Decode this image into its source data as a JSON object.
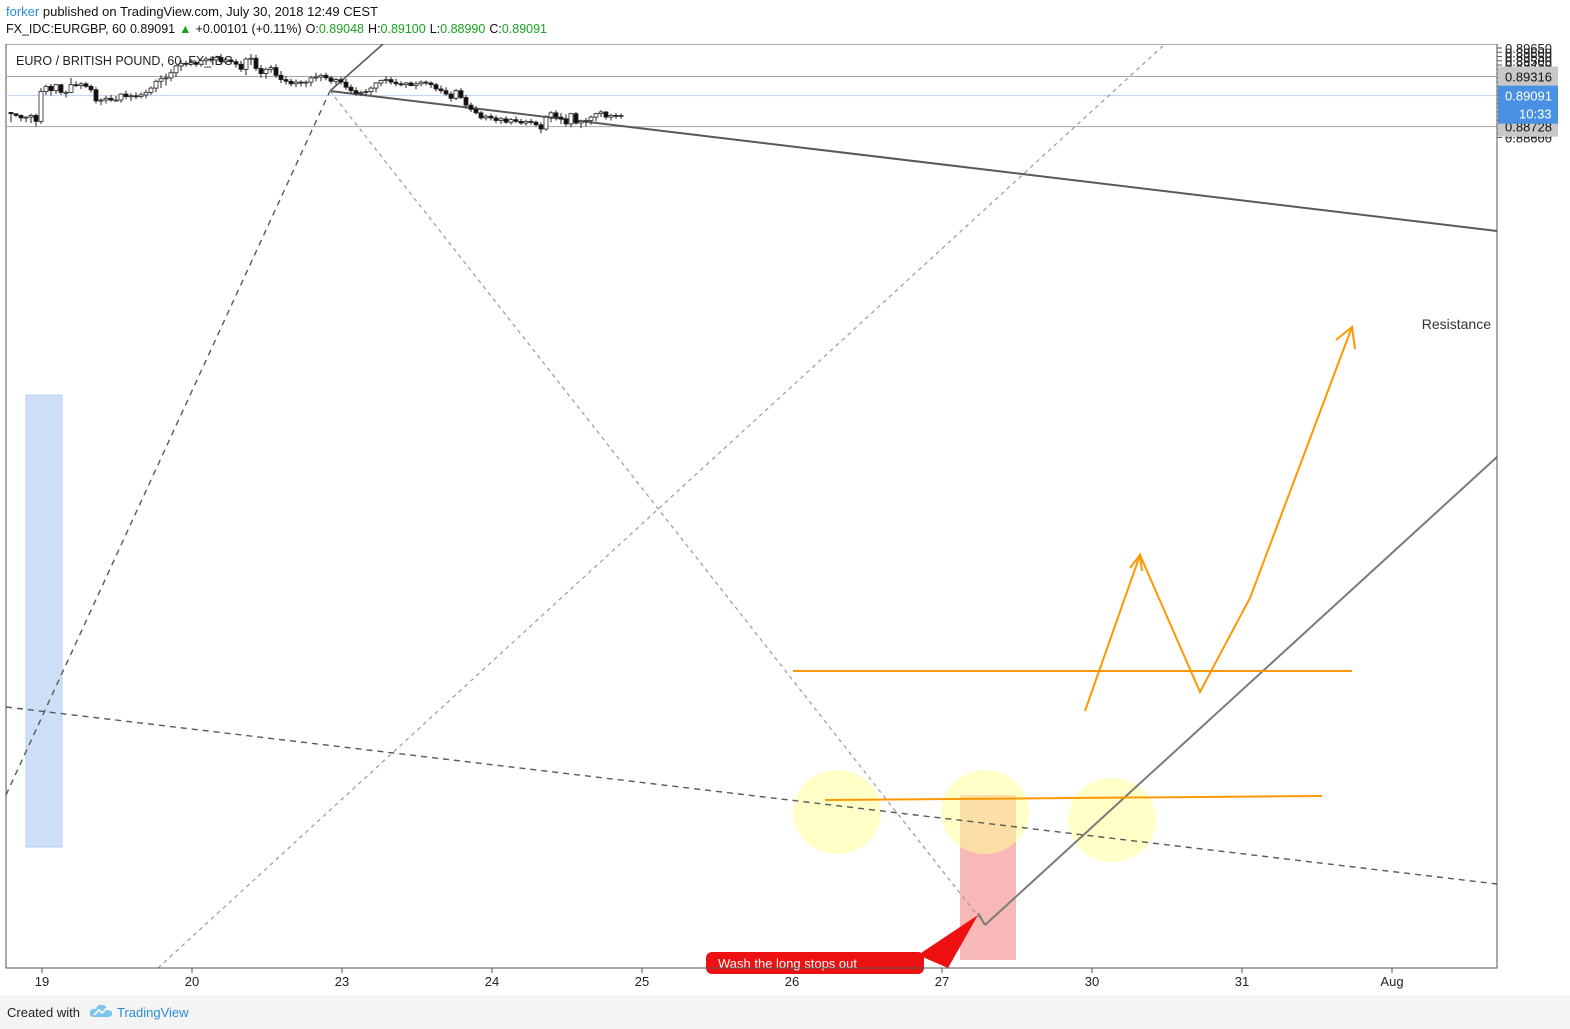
{
  "header": {
    "author": "forker",
    "published_text": "published on TradingView.com, July 30, 2018 12:49 CEST",
    "symbol": "FX_IDC:EURGBP, 60",
    "last": "0.89091",
    "change": "+0.00101 (+0.11%)",
    "open_label": "O:",
    "open": "0.89048",
    "high_label": "H:",
    "high": "0.89100",
    "low_label": "L:",
    "low": "0.88990",
    "close_label": "C:",
    "close": "0.89091"
  },
  "footer": {
    "created_with": "Created with",
    "brand": "TradingView"
  },
  "colors": {
    "up_candle": "#ffffff",
    "down_candle": "#1a0a0a",
    "trend_line": "#595959",
    "projection": "#ff9800",
    "last_price": "#4a90e2",
    "highlight_blue": "#bcd5f5",
    "highlight_red": "#f7a0a0",
    "highlight_yellow": "#ffff99",
    "callout": "#ee1111"
  },
  "chart_data": {
    "type": "candlestick",
    "title": "EURO / BRITISH POUND, 60, FX_IDC",
    "ylim": [
      0.8655,
      0.8966
    ],
    "x_ticks": [
      {
        "i": 7,
        "label": "19"
      },
      {
        "i": 37,
        "label": "20"
      },
      {
        "i": 67,
        "label": "23"
      },
      {
        "i": 97,
        "label": "24"
      },
      {
        "i": 127,
        "label": "25"
      },
      {
        "i": 157,
        "label": "26"
      },
      {
        "i": 187,
        "label": "27"
      },
      {
        "i": 217,
        "label": "30"
      },
      {
        "i": 247,
        "label": "31"
      },
      {
        "i": 277,
        "label": "Aug"
      }
    ],
    "y_ticks": [
      "0.89650",
      "0.89600",
      "0.89550",
      "0.89500",
      "0.89450",
      "0.89400",
      "0.89350",
      "0.89300",
      "0.89250",
      "0.89200",
      "0.89150",
      "0.89100",
      "0.89050",
      "0.89000",
      "0.88950",
      "0.88900",
      "0.88850",
      "0.88800",
      "0.88750",
      "0.88700",
      "0.88650",
      "0.88600"
    ],
    "candles": [
      [
        0.88895,
        0.88897,
        0.8878,
        0.8888
      ],
      [
        0.8888,
        0.8888,
        0.8884,
        0.8886
      ],
      [
        0.8886,
        0.8887,
        0.8879,
        0.8883
      ],
      [
        0.8883,
        0.8885,
        0.8878,
        0.8884
      ],
      [
        0.8884,
        0.8888,
        0.8877,
        0.8886
      ],
      [
        0.8886,
        0.8888,
        0.8873,
        0.8879
      ],
      [
        0.8879,
        0.8918,
        0.8876,
        0.8914
      ],
      [
        0.8914,
        0.8922,
        0.891,
        0.892
      ],
      [
        0.892,
        0.8923,
        0.8909,
        0.8915
      ],
      [
        0.8915,
        0.8923,
        0.8911,
        0.8922
      ],
      [
        0.8922,
        0.8923,
        0.891,
        0.8913
      ],
      [
        0.8913,
        0.8915,
        0.8907,
        0.8913
      ],
      [
        0.8913,
        0.893,
        0.8912,
        0.8922
      ],
      [
        0.8922,
        0.8926,
        0.8919,
        0.8921
      ],
      [
        0.8921,
        0.8925,
        0.8917,
        0.8923
      ],
      [
        0.8923,
        0.8925,
        0.8918,
        0.892
      ],
      [
        0.892,
        0.8922,
        0.8913,
        0.8916
      ],
      [
        0.8916,
        0.8919,
        0.89,
        0.8903
      ],
      [
        0.8903,
        0.8906,
        0.8898,
        0.8904
      ],
      [
        0.8904,
        0.8909,
        0.89,
        0.8906
      ],
      [
        0.8906,
        0.891,
        0.8902,
        0.8904
      ],
      [
        0.8904,
        0.8909,
        0.8902,
        0.8904
      ],
      [
        0.8904,
        0.8912,
        0.8901,
        0.8911
      ],
      [
        0.8911,
        0.8915,
        0.8905,
        0.8908
      ],
      [
        0.8908,
        0.8912,
        0.8903,
        0.8909
      ],
      [
        0.8909,
        0.8913,
        0.8905,
        0.8908
      ],
      [
        0.8908,
        0.8913,
        0.8906,
        0.891
      ],
      [
        0.891,
        0.8916,
        0.8906,
        0.8913
      ],
      [
        0.8913,
        0.892,
        0.891,
        0.8918
      ],
      [
        0.8918,
        0.8928,
        0.8913,
        0.8926
      ],
      [
        0.8926,
        0.8933,
        0.8918,
        0.8929
      ],
      [
        0.8929,
        0.8935,
        0.8921,
        0.893
      ],
      [
        0.893,
        0.894,
        0.8926,
        0.8936
      ],
      [
        0.8936,
        0.8945,
        0.8931,
        0.8944
      ],
      [
        0.8944,
        0.8951,
        0.8938,
        0.8947
      ],
      [
        0.8947,
        0.895,
        0.8943,
        0.8946
      ],
      [
        0.8946,
        0.8952,
        0.8944,
        0.8948
      ],
      [
        0.8948,
        0.895,
        0.8943,
        0.8946
      ],
      [
        0.8946,
        0.8952,
        0.8943,
        0.895
      ],
      [
        0.895,
        0.8955,
        0.8945,
        0.8952
      ],
      [
        0.8952,
        0.8955,
        0.8948,
        0.8951
      ],
      [
        0.8951,
        0.8956,
        0.8949,
        0.8954
      ],
      [
        0.8954,
        0.8958,
        0.8945,
        0.8949
      ],
      [
        0.8949,
        0.8953,
        0.8947,
        0.8951
      ],
      [
        0.8951,
        0.8953,
        0.8946,
        0.8949
      ],
      [
        0.8949,
        0.8952,
        0.8942,
        0.8946
      ],
      [
        0.8946,
        0.895,
        0.8937,
        0.894
      ],
      [
        0.894,
        0.8954,
        0.8933,
        0.8952
      ],
      [
        0.8952,
        0.8958,
        0.8945,
        0.8953
      ],
      [
        0.8953,
        0.8957,
        0.8938,
        0.8941
      ],
      [
        0.8941,
        0.8945,
        0.893,
        0.8935
      ],
      [
        0.8935,
        0.8942,
        0.8929,
        0.894
      ],
      [
        0.894,
        0.8945,
        0.8936,
        0.8942
      ],
      [
        0.8942,
        0.8946,
        0.893,
        0.8933
      ],
      [
        0.8933,
        0.8938,
        0.8924,
        0.8928
      ],
      [
        0.8928,
        0.8932,
        0.8922,
        0.8926
      ],
      [
        0.8926,
        0.8929,
        0.892,
        0.8923
      ],
      [
        0.8923,
        0.8928,
        0.8919,
        0.8925
      ],
      [
        0.8925,
        0.8927,
        0.892,
        0.8924
      ],
      [
        0.8924,
        0.8927,
        0.8919,
        0.8925
      ],
      [
        0.8925,
        0.8932,
        0.892,
        0.893
      ],
      [
        0.893,
        0.8936,
        0.8926,
        0.8931
      ],
      [
        0.8931,
        0.8935,
        0.8926,
        0.8933
      ],
      [
        0.8933,
        0.8936,
        0.8927,
        0.893
      ],
      [
        0.893,
        0.8932,
        0.8923,
        0.8926
      ],
      [
        0.8926,
        0.893,
        0.8922,
        0.8928
      ],
      [
        0.8928,
        0.8931,
        0.8922,
        0.8925
      ],
      [
        0.8925,
        0.8929,
        0.8916,
        0.8919
      ],
      [
        0.8919,
        0.8922,
        0.8912,
        0.8915
      ],
      [
        0.8915,
        0.8919,
        0.8909,
        0.8912
      ],
      [
        0.8912,
        0.8915,
        0.8909,
        0.8913
      ],
      [
        0.8913,
        0.8917,
        0.8909,
        0.8914
      ],
      [
        0.8914,
        0.892,
        0.891,
        0.8918
      ],
      [
        0.8918,
        0.8925,
        0.8913,
        0.8924
      ],
      [
        0.8924,
        0.8928,
        0.892,
        0.8927
      ],
      [
        0.8927,
        0.8932,
        0.8923,
        0.8928
      ],
      [
        0.8928,
        0.8931,
        0.8922,
        0.8925
      ],
      [
        0.8925,
        0.8929,
        0.892,
        0.8923
      ],
      [
        0.8923,
        0.8926,
        0.892,
        0.8922
      ],
      [
        0.8922,
        0.8925,
        0.8918,
        0.8924
      ],
      [
        0.8924,
        0.8926,
        0.892,
        0.8921
      ],
      [
        0.8921,
        0.8926,
        0.8917,
        0.8923
      ],
      [
        0.8923,
        0.8927,
        0.892,
        0.8925
      ],
      [
        0.8925,
        0.8927,
        0.8921,
        0.8924
      ],
      [
        0.8924,
        0.8926,
        0.8918,
        0.8922
      ],
      [
        0.8922,
        0.8924,
        0.8914,
        0.8917
      ],
      [
        0.8917,
        0.8921,
        0.8912,
        0.8915
      ],
      [
        0.8915,
        0.8919,
        0.8909,
        0.8911
      ],
      [
        0.8911,
        0.8914,
        0.8902,
        0.8906
      ],
      [
        0.8906,
        0.8917,
        0.8904,
        0.8915
      ],
      [
        0.8915,
        0.8918,
        0.8905,
        0.8907
      ],
      [
        0.8907,
        0.891,
        0.8894,
        0.8898
      ],
      [
        0.8898,
        0.8901,
        0.889,
        0.8893
      ],
      [
        0.8893,
        0.8897,
        0.8887,
        0.8889
      ],
      [
        0.8889,
        0.8891,
        0.8881,
        0.8883
      ],
      [
        0.8883,
        0.8887,
        0.888,
        0.8885
      ],
      [
        0.8885,
        0.8888,
        0.888,
        0.8883
      ],
      [
        0.8883,
        0.8886,
        0.8877,
        0.888
      ],
      [
        0.888,
        0.8884,
        0.8876,
        0.8882
      ],
      [
        0.8882,
        0.8885,
        0.8876,
        0.8878
      ],
      [
        0.8878,
        0.8883,
        0.8875,
        0.8881
      ],
      [
        0.8881,
        0.8885,
        0.8877,
        0.8879
      ],
      [
        0.8879,
        0.8882,
        0.8875,
        0.8877
      ],
      [
        0.8877,
        0.8881,
        0.8874,
        0.8879
      ],
      [
        0.8879,
        0.8882,
        0.8875,
        0.8878
      ],
      [
        0.8878,
        0.888,
        0.8873,
        0.8875
      ],
      [
        0.8875,
        0.8878,
        0.8865,
        0.887
      ],
      [
        0.887,
        0.8886,
        0.8868,
        0.8884
      ],
      [
        0.8884,
        0.8891,
        0.8878,
        0.8889
      ],
      [
        0.8889,
        0.8892,
        0.888,
        0.8884
      ],
      [
        0.8884,
        0.8889,
        0.8876,
        0.8882
      ],
      [
        0.8882,
        0.8887,
        0.8873,
        0.8876
      ],
      [
        0.8876,
        0.8889,
        0.8872,
        0.8888
      ],
      [
        0.8888,
        0.889,
        0.8875,
        0.8877
      ],
      [
        0.8877,
        0.8881,
        0.8871,
        0.8879
      ],
      [
        0.8879,
        0.8883,
        0.8873,
        0.888
      ],
      [
        0.888,
        0.8886,
        0.8875,
        0.8884
      ],
      [
        0.8884,
        0.8889,
        0.8879,
        0.8888
      ],
      [
        0.8888,
        0.8892,
        0.8884,
        0.889
      ],
      [
        0.889,
        0.8891,
        0.8881,
        0.8884
      ],
      [
        0.8884,
        0.8888,
        0.888,
        0.8886
      ],
      [
        0.8886,
        0.8889,
        0.8882,
        0.8885
      ],
      [
        0.8885,
        0.8888,
        0.8882,
        0.8886
      ]
    ],
    "candle_window": {
      "first_index": 0
    },
    "annotations": {
      "price_labels": [
        {
          "value": 0.89316,
          "label": "0.89316",
          "text": "Resistance"
        },
        {
          "value": 0.88728,
          "label": "0.88728"
        }
      ],
      "last_price": {
        "value": 0.89091,
        "label": "0.89091",
        "countdown": "10:33"
      },
      "callout_text": "Wash the long stops out"
    }
  }
}
